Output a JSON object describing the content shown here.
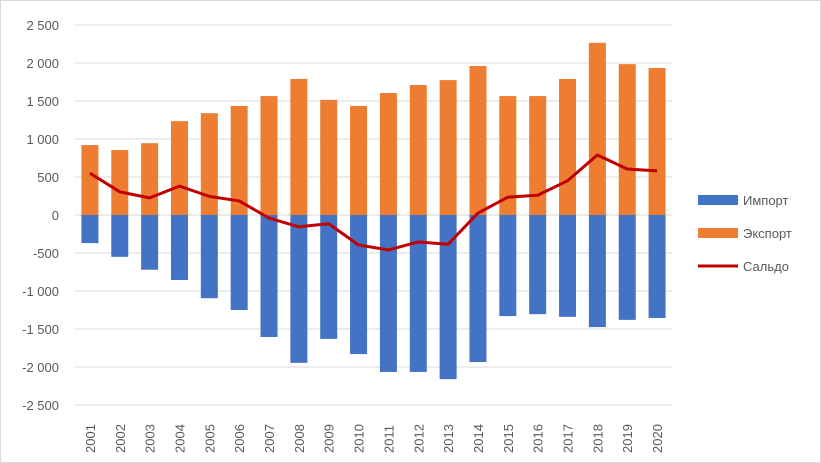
{
  "chart_data": {
    "type": "bar",
    "title": "",
    "xlabel": "",
    "ylabel": "",
    "ylim": [
      -2500,
      2500
    ],
    "yticks": [
      2500,
      2000,
      1500,
      1000,
      500,
      0,
      -500,
      -1000,
      -1500,
      -2000,
      -2500
    ],
    "ytick_labels": [
      "2 500",
      "2 000",
      "1 500",
      "1 000",
      "500",
      "0",
      "-500",
      "-1 000",
      "-1 500",
      "-2 000",
      "-2 500"
    ],
    "grid": true,
    "legend_position": "right",
    "categories": [
      "2001",
      "2002",
      "2003",
      "2004",
      "2005",
      "2006",
      "2007",
      "2008",
      "2009",
      "2010",
      "2011",
      "2012",
      "2013",
      "2014",
      "2015",
      "2016",
      "2017",
      "2018",
      "2019",
      "2020"
    ],
    "series": [
      {
        "name": "Импорт",
        "type": "bar",
        "color": "#4472C4",
        "values": [
          -370,
          -550,
          -720,
          -855,
          -1095,
          -1250,
          -1605,
          -1945,
          -1630,
          -1830,
          -2065,
          -2065,
          -2160,
          -1935,
          -1330,
          -1305,
          -1340,
          -1475,
          -1380,
          -1355
        ]
      },
      {
        "name": "Экспорт",
        "type": "bar",
        "color": "#ED7D31",
        "values": [
          920,
          855,
          945,
          1235,
          1340,
          1435,
          1565,
          1790,
          1515,
          1435,
          1605,
          1710,
          1775,
          1960,
          1565,
          1565,
          1790,
          2265,
          1985,
          1935
        ]
      },
      {
        "name": "Сальдо",
        "type": "line",
        "color": "#C00000",
        "values": [
          550,
          305,
          225,
          380,
          245,
          185,
          -40,
          -155,
          -115,
          -395,
          -460,
          -355,
          -385,
          25,
          235,
          260,
          450,
          790,
          605,
          580
        ]
      }
    ]
  }
}
